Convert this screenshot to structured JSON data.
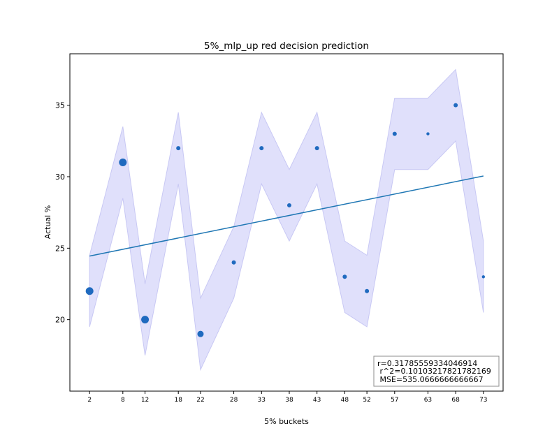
{
  "chart_data": {
    "type": "scatter",
    "title": "5%_mlp_up red decision prediction",
    "xlabel": "5% buckets",
    "ylabel": "Actual %",
    "x_ticks": [
      2,
      8,
      12,
      18,
      22,
      28,
      33,
      38,
      43,
      48,
      52,
      57,
      63,
      68,
      73
    ],
    "y_ticks": [
      20,
      25,
      30,
      35
    ],
    "xlim": [
      -1.55,
      76.55
    ],
    "ylim": [
      15.0,
      38.6
    ],
    "colors": {
      "points": "#1f6abf",
      "trend": "#1f77b4",
      "band_fill": "#e0e0fb",
      "band_edge": "#c8c8f4"
    },
    "points": [
      {
        "x": 2,
        "y": 22,
        "size": "large"
      },
      {
        "x": 8,
        "y": 31,
        "size": "large"
      },
      {
        "x": 12,
        "y": 20,
        "size": "large"
      },
      {
        "x": 18,
        "y": 32,
        "size": "small"
      },
      {
        "x": 22,
        "y": 19,
        "size": "medium"
      },
      {
        "x": 28,
        "y": 24,
        "size": "small"
      },
      {
        "x": 33,
        "y": 32,
        "size": "small"
      },
      {
        "x": 38,
        "y": 28,
        "size": "small"
      },
      {
        "x": 43,
        "y": 32,
        "size": "small"
      },
      {
        "x": 48,
        "y": 23,
        "size": "small"
      },
      {
        "x": 52,
        "y": 22,
        "size": "small"
      },
      {
        "x": 57,
        "y": 33,
        "size": "small"
      },
      {
        "x": 63,
        "y": 33,
        "size": "tiny"
      },
      {
        "x": 68,
        "y": 35,
        "size": "small"
      },
      {
        "x": 73,
        "y": 23,
        "size": "tiny"
      }
    ],
    "band": [
      {
        "x": 2,
        "low": 19.5,
        "high": 24.5
      },
      {
        "x": 8,
        "low": 28.5,
        "high": 33.5
      },
      {
        "x": 12,
        "low": 17.5,
        "high": 22.5
      },
      {
        "x": 18,
        "low": 29.5,
        "high": 34.5
      },
      {
        "x": 22,
        "low": 16.5,
        "high": 21.5
      },
      {
        "x": 28,
        "low": 21.5,
        "high": 26.5
      },
      {
        "x": 33,
        "low": 29.5,
        "high": 34.5
      },
      {
        "x": 38,
        "low": 25.5,
        "high": 30.5
      },
      {
        "x": 43,
        "low": 29.5,
        "high": 34.5
      },
      {
        "x": 48,
        "low": 20.5,
        "high": 25.5
      },
      {
        "x": 52,
        "low": 19.5,
        "high": 24.5
      },
      {
        "x": 57,
        "low": 30.5,
        "high": 35.5
      },
      {
        "x": 63,
        "low": 30.5,
        "high": 35.5
      },
      {
        "x": 68,
        "low": 32.5,
        "high": 37.5
      },
      {
        "x": 73,
        "low": 20.5,
        "high": 25.5
      }
    ],
    "trend_line": {
      "x": [
        2,
        73
      ],
      "y": [
        24.45,
        30.05
      ]
    },
    "stats_box": {
      "line1": "r=0.31785559334046914",
      "line2": " r^2=0.10103217821782169",
      "line3": " MSE=535.0666666666667"
    },
    "legend_placement": "lower-right",
    "grid": false
  }
}
